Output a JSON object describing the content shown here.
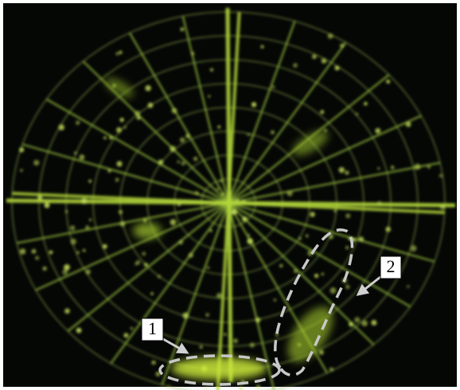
{
  "annotations": [
    {
      "label": "1"
    },
    {
      "label": "2"
    }
  ]
}
